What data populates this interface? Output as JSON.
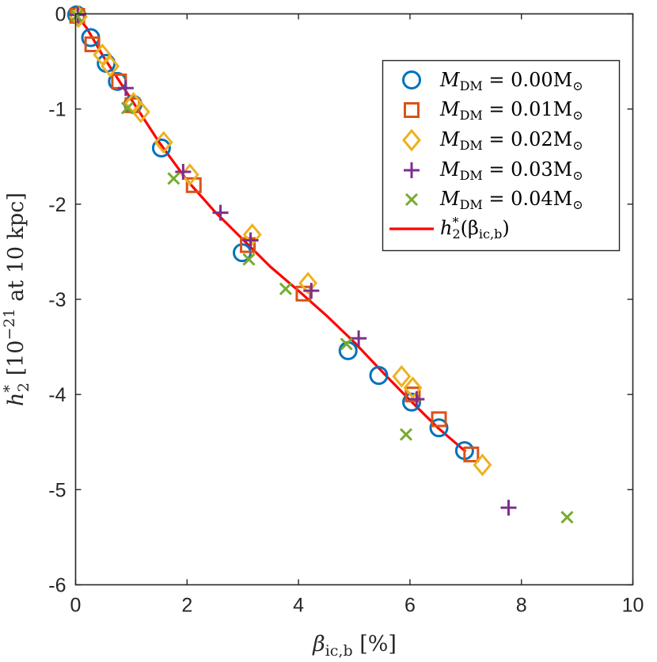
{
  "chart_data": {
    "type": "scatter",
    "title": "",
    "xlabel": "β_ic,b [%]",
    "ylabel": "h₂* [10⁻²¹ at 10 kpc]",
    "xlim": [
      0,
      10
    ],
    "ylim": [
      -6,
      0
    ],
    "grid": false,
    "legend_position": "top-right",
    "x_ticks": [
      0,
      2,
      4,
      6,
      8,
      10
    ],
    "x_tick_labels": [
      "0",
      "2",
      "4",
      "6",
      "8",
      "10"
    ],
    "y_ticks": [
      0,
      -1,
      -2,
      -3,
      -4,
      -5,
      -6
    ],
    "y_tick_labels": [
      "0",
      "-1",
      "-2",
      "-3",
      "-4",
      "-5",
      "-6"
    ],
    "series": [
      {
        "name": "M_DM = 0.00M⊙",
        "marker": "circle",
        "color": "#0072BD",
        "points": [
          [
            0.02,
            -0.01
          ],
          [
            0.27,
            -0.25
          ],
          [
            0.55,
            -0.52
          ],
          [
            0.75,
            -0.71
          ],
          [
            1.03,
            -0.95
          ],
          [
            1.54,
            -1.41
          ],
          [
            2.99,
            -2.51
          ],
          [
            4.89,
            -3.54
          ],
          [
            5.44,
            -3.8
          ],
          [
            6.03,
            -4.08
          ],
          [
            6.52,
            -4.35
          ],
          [
            6.98,
            -4.59
          ]
        ]
      },
      {
        "name": "M_DM = 0.01M⊙",
        "marker": "square",
        "color": "#D95319",
        "points": [
          [
            0.03,
            -0.02
          ],
          [
            0.3,
            -0.32
          ],
          [
            0.78,
            -0.71
          ],
          [
            1.02,
            -0.96
          ],
          [
            2.12,
            -1.8
          ],
          [
            3.09,
            -2.43
          ],
          [
            4.09,
            -2.94
          ],
          [
            6.05,
            -4.0
          ],
          [
            6.52,
            -4.26
          ],
          [
            7.1,
            -4.63
          ]
        ]
      },
      {
        "name": "M_DM = 0.02M⊙",
        "marker": "diamond",
        "color": "#EDB120",
        "points": [
          [
            0.05,
            -0.03
          ],
          [
            0.48,
            -0.43
          ],
          [
            0.62,
            -0.55
          ],
          [
            1.04,
            -0.94
          ],
          [
            1.17,
            -1.03
          ],
          [
            1.58,
            -1.35
          ],
          [
            2.05,
            -1.69
          ],
          [
            3.17,
            -2.32
          ],
          [
            4.17,
            -2.83
          ],
          [
            5.85,
            -3.81
          ],
          [
            6.05,
            -3.93
          ],
          [
            7.3,
            -4.74
          ]
        ]
      },
      {
        "name": "M_DM = 0.03M⊙",
        "marker": "plus",
        "color": "#7E2F8E",
        "points": [
          [
            0.04,
            -0.01
          ],
          [
            0.9,
            -0.78
          ],
          [
            1.93,
            -1.66
          ],
          [
            2.6,
            -2.09
          ],
          [
            3.14,
            -2.38
          ],
          [
            4.23,
            -2.91
          ],
          [
            5.08,
            -3.41
          ],
          [
            6.12,
            -4.05
          ],
          [
            7.77,
            -5.19
          ]
        ]
      },
      {
        "name": "M_DM = 0.04M⊙",
        "marker": "x",
        "color": "#77AC30",
        "points": [
          [
            0.02,
            -0.02
          ],
          [
            0.93,
            -0.99
          ],
          [
            1.76,
            -1.73
          ],
          [
            3.11,
            -2.58
          ],
          [
            3.77,
            -2.89
          ],
          [
            4.86,
            -3.47
          ],
          [
            5.93,
            -4.42
          ],
          [
            8.82,
            -5.29
          ]
        ]
      }
    ],
    "fit_line": {
      "name": "h₂*(β_ic,b)",
      "color": "#FF0000",
      "points": [
        [
          0.0,
          0.0
        ],
        [
          0.2,
          -0.15
        ],
        [
          0.5,
          -0.45
        ],
        [
          0.8,
          -0.72
        ],
        [
          1.0,
          -0.9
        ],
        [
          1.5,
          -1.35
        ],
        [
          2.0,
          -1.75
        ],
        [
          2.5,
          -2.08
        ],
        [
          3.0,
          -2.37
        ],
        [
          3.5,
          -2.66
        ],
        [
          4.0,
          -2.91
        ],
        [
          4.5,
          -3.17
        ],
        [
          5.0,
          -3.45
        ],
        [
          5.5,
          -3.76
        ],
        [
          6.0,
          -4.06
        ],
        [
          6.5,
          -4.35
        ],
        [
          7.0,
          -4.6
        ]
      ]
    }
  },
  "legend": {
    "entries": [
      {
        "prefix": "M",
        "subscript": "DM",
        "rest": " = 0.00M",
        "suffix": "⊙"
      },
      {
        "prefix": "M",
        "subscript": "DM",
        "rest": " = 0.01M",
        "suffix": "⊙"
      },
      {
        "prefix": "M",
        "subscript": "DM",
        "rest": " = 0.02M",
        "suffix": "⊙"
      },
      {
        "prefix": "M",
        "subscript": "DM",
        "rest": " = 0.03M",
        "suffix": "⊙"
      },
      {
        "prefix": "M",
        "subscript": "DM",
        "rest": " = 0.04M",
        "suffix": "⊙"
      }
    ],
    "fit_entry": {
      "prefix": "h",
      "superscript": "*",
      "subscript": "2",
      "rest": "(β",
      "subscript2": "ic,b",
      "close": ")"
    }
  },
  "axes_text": {
    "xlabel_beta": "β",
    "xlabel_sub": "ic,b",
    "xlabel_unit": " [%]",
    "ylabel_h": "h",
    "ylabel_sup": "*",
    "ylabel_sub": "2",
    "ylabel_bracket": " [10",
    "ylabel_exp": "−21",
    "ylabel_rest": "  at 10 kpc]"
  }
}
